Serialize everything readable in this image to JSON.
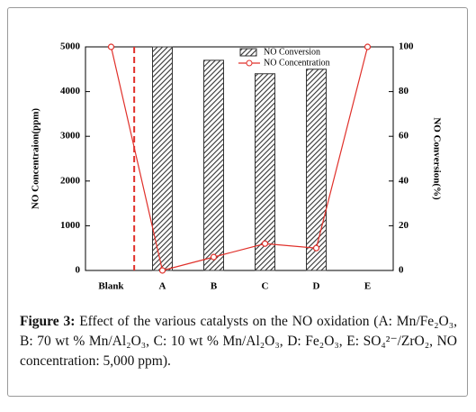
{
  "chart_data": {
    "type": "combo",
    "categories": [
      "Blank",
      "A",
      "B",
      "C",
      "D",
      "E"
    ],
    "y_label": "NO Concentraion(ppm)",
    "y2_label": "NO Conversion(%)",
    "ylim": [
      0,
      5000
    ],
    "yticks": [
      0,
      1000,
      2000,
      3000,
      4000,
      5000
    ],
    "y2lim": [
      0,
      100
    ],
    "y2ticks": [
      0,
      20,
      40,
      60,
      80,
      100
    ],
    "legend": "upper right",
    "series": [
      {
        "name": "NO Conversion",
        "type": "bar",
        "axis": "y2",
        "color": "#333333",
        "values": [
          null,
          100,
          94,
          88,
          90,
          null
        ]
      },
      {
        "name": "NO Concentration",
        "type": "line",
        "color": "#e0302a",
        "values": [
          5000,
          0,
          300,
          600,
          500,
          5000
        ]
      }
    ]
  },
  "caption": {
    "label": "Figure 3:",
    "text": "Effect of the various catalysts on the NO oxidation (A: Mn/Fe₂O₃, B: 70 wt % Mn/Al₂O₃, C: 10 wt % Mn/Al₂O₃, D: Fe₂O₃, E: SO₄²⁻/ZrO₂, NO concentration: 5,000 ppm)."
  }
}
